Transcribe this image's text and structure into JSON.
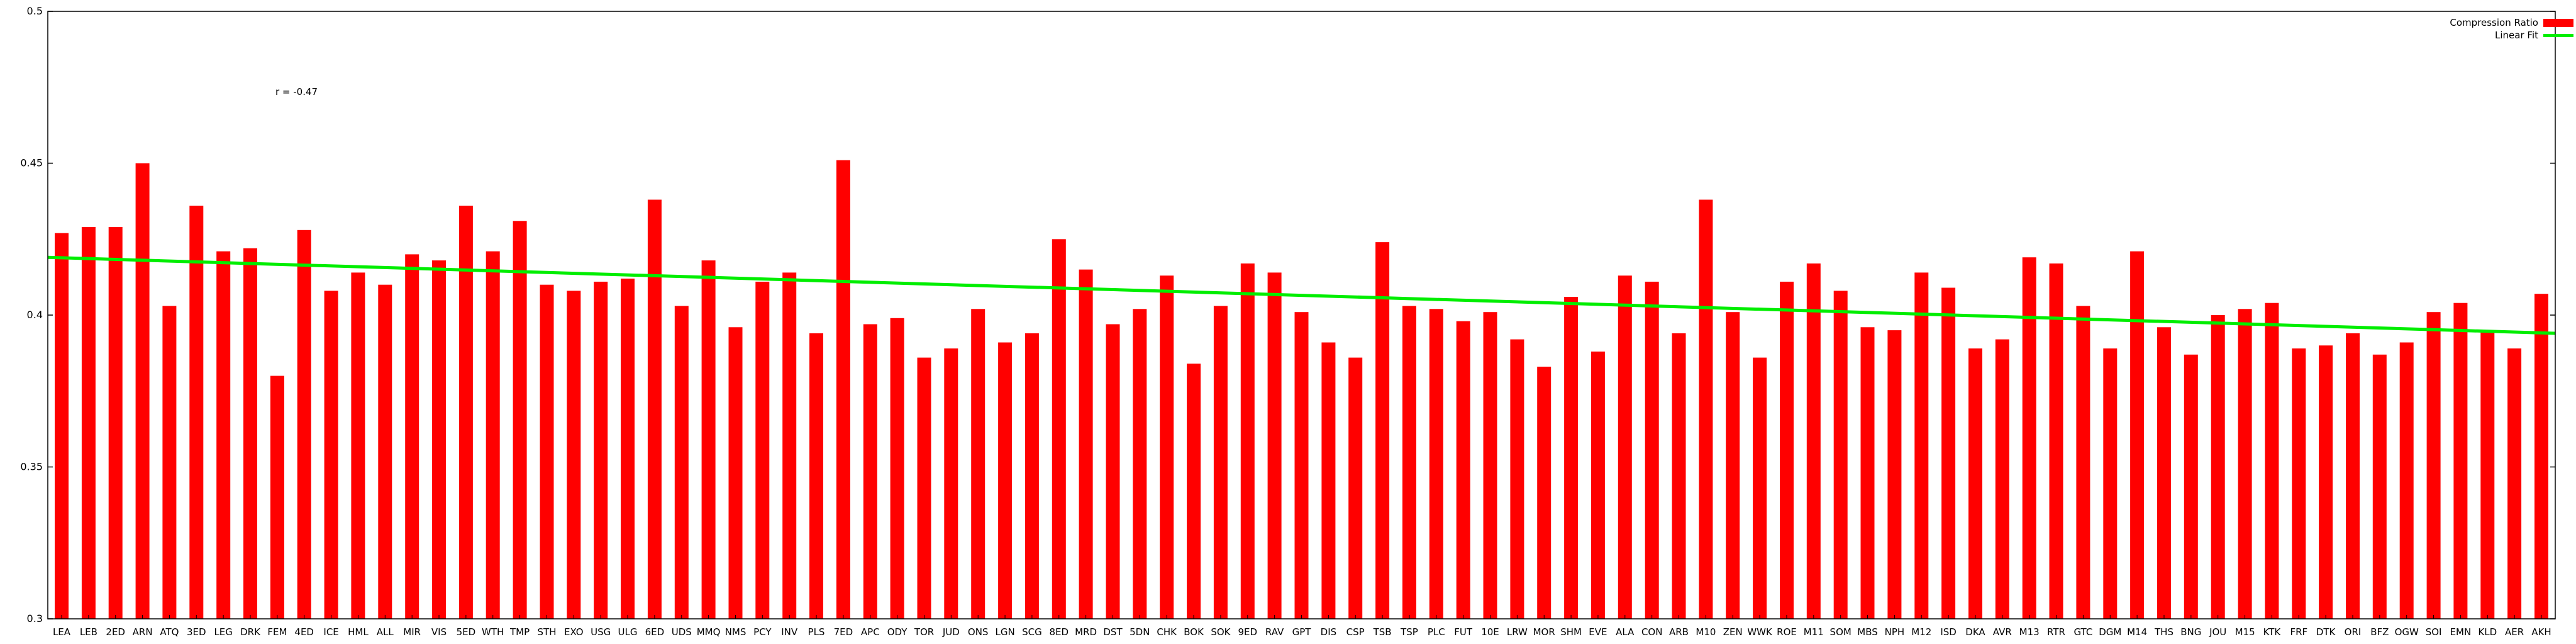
{
  "chart_data": {
    "type": "bar",
    "title": "",
    "xlabel": "",
    "ylabel": "",
    "ylim": [
      0.3,
      0.5
    ],
    "yticks": [
      0.3,
      0.35,
      0.4,
      0.45,
      0.5
    ],
    "ytick_labels": [
      "0.3",
      "0.35",
      "0.4",
      "0.45",
      "0.5"
    ],
    "grid": false,
    "legend_position": "top-right",
    "annotation": "r = -0.47",
    "categories": [
      "LEA",
      "LEB",
      "2ED",
      "ARN",
      "ATQ",
      "3ED",
      "LEG",
      "DRK",
      "FEM",
      "4ED",
      "ICE",
      "HML",
      "ALL",
      "MIR",
      "VIS",
      "5ED",
      "WTH",
      "TMP",
      "STH",
      "EXO",
      "USG",
      "ULG",
      "6ED",
      "UDS",
      "MMQ",
      "NMS",
      "PCY",
      "INV",
      "PLS",
      "7ED",
      "APC",
      "ODY",
      "TOR",
      "JUD",
      "ONS",
      "LGN",
      "SCG",
      "8ED",
      "MRD",
      "DST",
      "5DN",
      "CHK",
      "BOK",
      "SOK",
      "9ED",
      "RAV",
      "GPT",
      "DIS",
      "CSP",
      "TSB",
      "TSP",
      "PLC",
      "FUT",
      "10E",
      "LRW",
      "MOR",
      "SHM",
      "EVE",
      "ALA",
      "CON",
      "ARB",
      "M10",
      "ZEN",
      "WWK",
      "ROE",
      "M11",
      "SOM",
      "MBS",
      "NPH",
      "M12",
      "ISD",
      "DKA",
      "AVR",
      "M13",
      "RTR",
      "GTC",
      "DGM",
      "M14",
      "THS",
      "BNG",
      "JOU",
      "M15",
      "KTK",
      "FRF",
      "DTK",
      "ORI",
      "BFZ",
      "OGW",
      "SOI",
      "EMN",
      "KLD",
      "AER",
      "AKH"
    ],
    "series": [
      {
        "name": "Compression Ratio",
        "color": "#ff0000",
        "values": [
          0.427,
          0.429,
          0.429,
          0.45,
          0.403,
          0.436,
          0.421,
          0.422,
          0.38,
          0.428,
          0.408,
          0.414,
          0.41,
          0.42,
          0.418,
          0.436,
          0.421,
          0.431,
          0.41,
          0.408,
          0.411,
          0.412,
          0.438,
          0.403,
          0.418,
          0.396,
          0.411,
          0.414,
          0.394,
          0.451,
          0.397,
          0.399,
          0.386,
          0.389,
          0.402,
          0.391,
          0.394,
          0.425,
          0.415,
          0.397,
          0.402,
          0.413,
          0.384,
          0.403,
          0.417,
          0.414,
          0.401,
          0.391,
          0.386,
          0.424,
          0.403,
          0.402,
          0.398,
          0.401,
          0.392,
          0.383,
          0.406,
          0.388,
          0.413,
          0.411,
          0.394,
          0.438,
          0.401,
          0.386,
          0.411,
          0.417,
          0.408,
          0.396,
          0.395,
          0.414,
          0.409,
          0.389,
          0.392,
          0.419,
          0.417,
          0.403,
          0.389,
          0.421,
          0.396,
          0.387,
          0.4,
          0.402,
          0.404,
          0.389,
          0.39,
          0.394,
          0.387,
          0.391,
          0.401,
          0.404,
          0.395,
          0.389,
          0.407
        ]
      },
      {
        "name": "Linear Fit",
        "type": "line",
        "color": "#00ee00",
        "start": 0.419,
        "end": 0.394
      }
    ]
  }
}
